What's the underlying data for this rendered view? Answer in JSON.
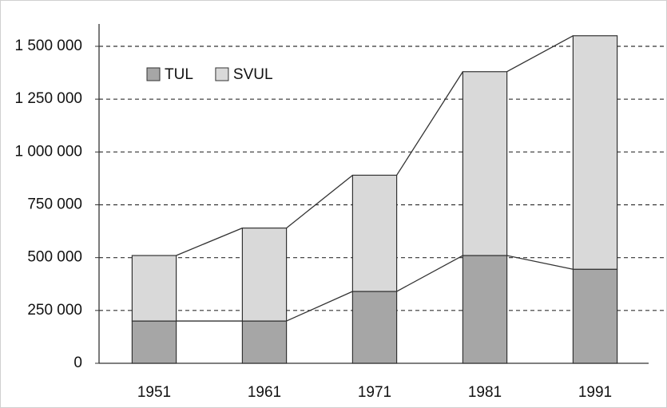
{
  "chart_data": {
    "type": "stacked_bar",
    "categories": [
      "1951",
      "1961",
      "1971",
      "1981",
      "1991"
    ],
    "series": [
      {
        "name": "TUL",
        "color": "#a6a6a6",
        "values": [
          200000,
          200000,
          340000,
          510000,
          445000
        ]
      },
      {
        "name": "SVUL",
        "color": "#d9d9d9",
        "values": [
          310000,
          440000,
          550000,
          870000,
          1105000
        ]
      }
    ],
    "ylim": [
      0,
      1500000
    ],
    "yticks": [
      0,
      {
        "value": 250000,
        "label": "250 000"
      },
      {
        "value": 500000,
        "label": "500 000"
      },
      {
        "value": 750000,
        "label": "750 000"
      },
      {
        "value": 1000000,
        "label": "1 000 000"
      },
      {
        "value": 1250000,
        "label": "1 250 000"
      },
      {
        "value": 1500000,
        "label": "1 500 000"
      }
    ],
    "grid": true,
    "legend": "top-left",
    "series_lines": true
  }
}
